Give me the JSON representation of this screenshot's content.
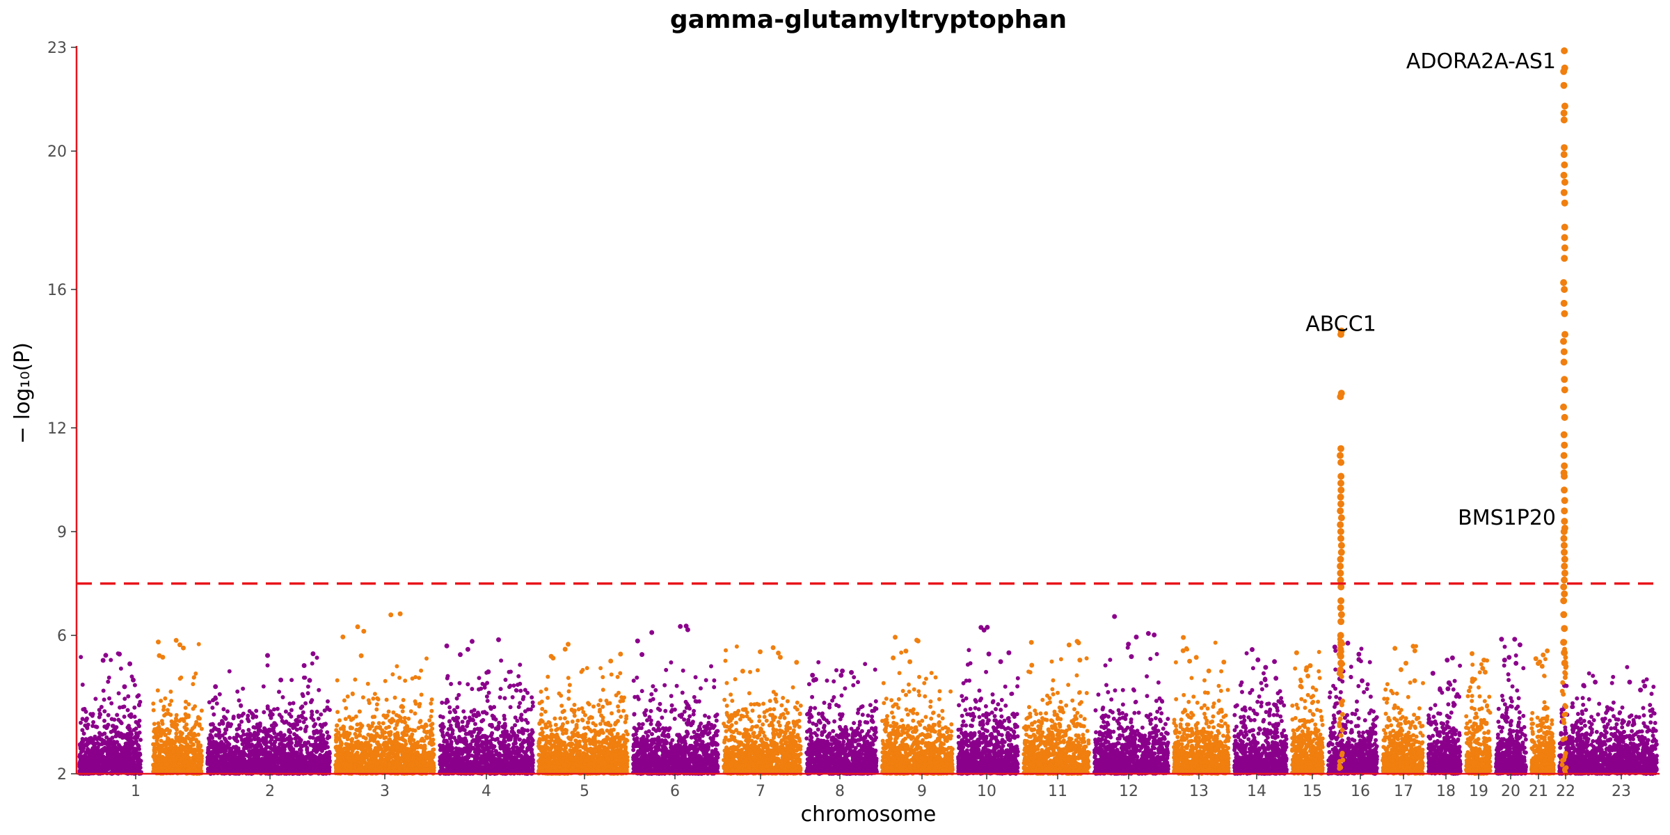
{
  "chart_data": {
    "type": "scatter",
    "title": "gamma-glutamyltryptophan",
    "xlabel": "chromosome",
    "ylabel": "− log₁₀(P)",
    "ylim": [
      2,
      23
    ],
    "yticks": [
      2,
      6,
      9,
      12,
      16,
      20,
      23
    ],
    "chromosomes": [
      "1",
      "2",
      "3",
      "4",
      "5",
      "6",
      "7",
      "8",
      "9",
      "10",
      "11",
      "12",
      "13",
      "14",
      "15",
      "16",
      "17",
      "18",
      "19",
      "20",
      "21",
      "22",
      "23"
    ],
    "series_colors": [
      "#8b008b",
      "#f07f0f"
    ],
    "threshold": {
      "value": 7.5,
      "color": "#e8141b"
    },
    "axis_color": "#e8141b",
    "background_max": [
      5.5,
      6.0,
      5.5,
      6.8,
      6.2,
      6.4,
      6.3,
      5.8,
      5.5,
      6.2,
      6.3,
      5.9,
      6.6,
      6.0,
      5.7,
      5.6,
      5.8,
      5.8,
      5.4,
      5.6,
      6.5,
      6.0,
      5.1
    ],
    "peaks": [
      {
        "gene": "ABCC1",
        "chromosome": "16",
        "max": 14.8,
        "values": [
          14.8,
          14.7,
          13.0,
          12.9,
          11.4,
          11.2,
          11.0,
          10.6,
          10.4,
          10.2,
          10.0,
          9.8,
          9.6,
          9.4,
          9.2,
          9.0,
          8.8,
          8.6,
          8.4,
          8.2,
          8.0,
          7.8,
          7.6,
          7.4,
          7.0,
          6.8,
          6.6,
          6.4,
          6.0,
          5.8,
          5.6,
          5.4,
          5.2,
          5.0
        ]
      },
      {
        "gene": "ADORA2A-AS1",
        "chromosome": "22",
        "max": 22.9,
        "values": [
          22.9,
          22.4,
          22.3,
          21.9,
          21.3,
          21.1,
          20.9,
          20.1,
          19.9,
          19.6,
          19.3,
          19.1,
          18.8,
          18.5,
          17.8,
          17.5,
          17.2,
          16.9,
          16.2,
          16.0,
          15.6,
          15.3,
          14.7,
          14.5,
          14.2,
          13.9,
          13.4,
          13.1,
          12.6,
          12.3,
          11.8,
          11.5,
          11.2,
          10.9,
          10.7,
          10.6,
          10.2,
          9.9,
          9.6,
          9.3,
          9.1,
          9.0,
          8.8,
          8.6,
          8.4,
          8.2,
          8.0,
          7.8,
          7.6,
          7.4,
          7.2,
          7.0,
          6.6,
          6.2,
          5.8,
          5.5,
          5.2
        ]
      }
    ],
    "annotations": [
      {
        "text": "ADORA2A-AS1",
        "chromosome": "22",
        "y": 22.6
      },
      {
        "text": "ABCC1",
        "chromosome": "16",
        "y": 15.0
      },
      {
        "text": "BMS1P20",
        "chromosome": "22",
        "y": 9.4
      }
    ]
  }
}
